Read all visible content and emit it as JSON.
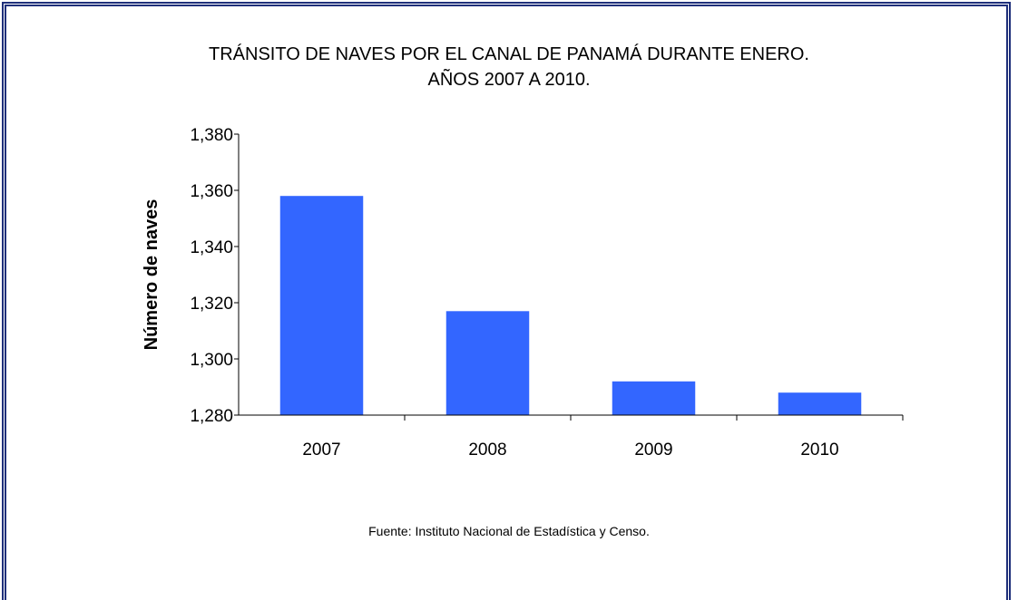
{
  "chart_data": {
    "type": "bar",
    "title": "TRÁNSITO DE NAVES POR EL CANAL DE PANAMÁ DURANTE ENERO.\nAÑOS 2007 A 2010.",
    "y_label": "Número de naves",
    "source": "Fuente: Instituto Nacional de Estadística y Censo.",
    "categories": [
      "2007",
      "2008",
      "2009",
      "2010"
    ],
    "values": [
      1358,
      1317,
      1292,
      1288
    ],
    "color": "#3366ff",
    "ylim": [
      1280,
      1380
    ],
    "yticks": [
      {
        "value": 1280,
        "label": "1,280"
      },
      {
        "value": 1300,
        "label": "1,300"
      },
      {
        "value": 1320,
        "label": "1,320"
      },
      {
        "value": 1340,
        "label": "1,340"
      },
      {
        "value": 1360,
        "label": "1,360"
      },
      {
        "value": 1380,
        "label": "1,380"
      }
    ],
    "grid": false
  }
}
